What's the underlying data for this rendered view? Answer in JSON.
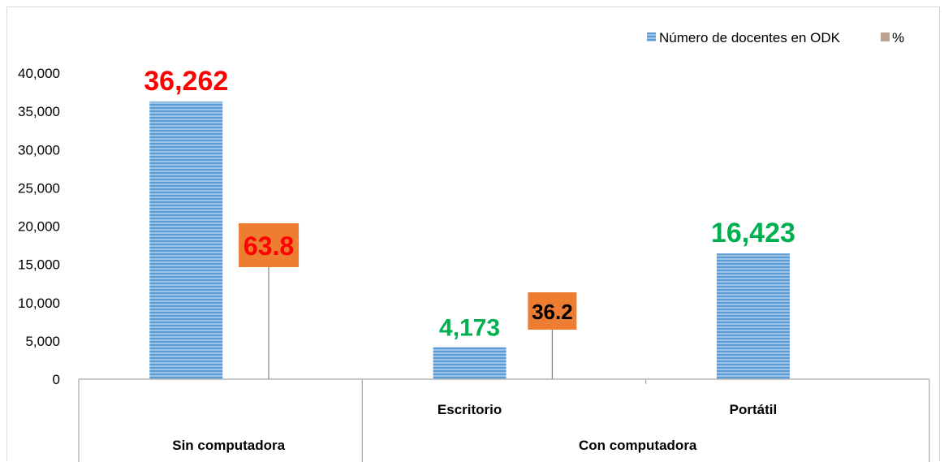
{
  "chart_data": {
    "type": "bar",
    "categories": [
      {
        "label": "",
        "group": "Sin computadora"
      },
      {
        "label": "Escritorio",
        "group": "Con computadora"
      },
      {
        "label": "Portátil",
        "group": "Con computadora"
      }
    ],
    "groups": [
      "Sin computadora",
      "Con computadora"
    ],
    "series": [
      {
        "name": "Número de docentes en ODK",
        "values": [
          36262,
          4173,
          16423
        ],
        "color": "#5b9bd5"
      },
      {
        "name": "%",
        "values": [
          63.8,
          36.2,
          null
        ],
        "color": "#c0a090"
      }
    ],
    "data_labels": {
      "counts": [
        "36,262",
        "4,173",
        "16,423"
      ],
      "counts_colors": [
        "#ff0000",
        "#00b050",
        "#00b050"
      ],
      "percents": [
        "63.8",
        "36.2"
      ],
      "percents_colors": [
        "#ff0000",
        "#000000"
      ],
      "percent_box_color": "#ed7d31"
    },
    "ylim": [
      0,
      40000
    ],
    "yticks": [
      "0",
      "5,000",
      "10,000",
      "15,000",
      "20,000",
      "25,000",
      "30,000",
      "35,000",
      "40,000"
    ],
    "ytick_values": [
      0,
      5000,
      10000,
      15000,
      20000,
      25000,
      30000,
      35000,
      40000
    ],
    "legend_position": "top-right",
    "grid": false
  }
}
